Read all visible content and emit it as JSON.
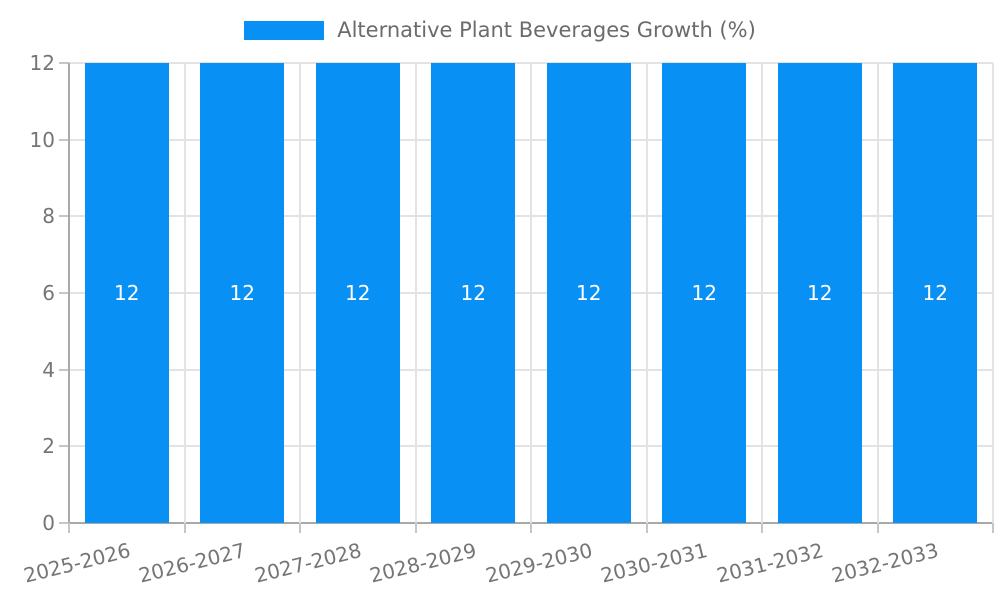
{
  "chart_data": {
    "type": "bar",
    "title": "Alternative Plant Beverages Growth (%)",
    "categories": [
      "2025-2026",
      "2026-2027",
      "2027-2028",
      "2028-2029",
      "2029-2030",
      "2030-2031",
      "2031-2032",
      "2032-2033"
    ],
    "values": [
      12,
      12,
      12,
      12,
      12,
      12,
      12,
      12
    ],
    "bar_labels": [
      "12",
      "12",
      "12",
      "12",
      "12",
      "12",
      "12",
      "12"
    ],
    "yticks": [
      0,
      2,
      4,
      6,
      8,
      10,
      12
    ],
    "ylim": [
      0,
      12
    ],
    "xlabel": "",
    "ylabel": "",
    "grid": true,
    "legend_position": "top-center",
    "colors": {
      "bar": "#0990f4",
      "axis_line": "#a9a9a9",
      "gridline": "#e3e3e3",
      "tick": "#c6c6c6",
      "tick_label": "#757575",
      "title_text": "#6b6b6b",
      "bar_label_text": "#ffffff",
      "background": "#ffffff"
    }
  }
}
